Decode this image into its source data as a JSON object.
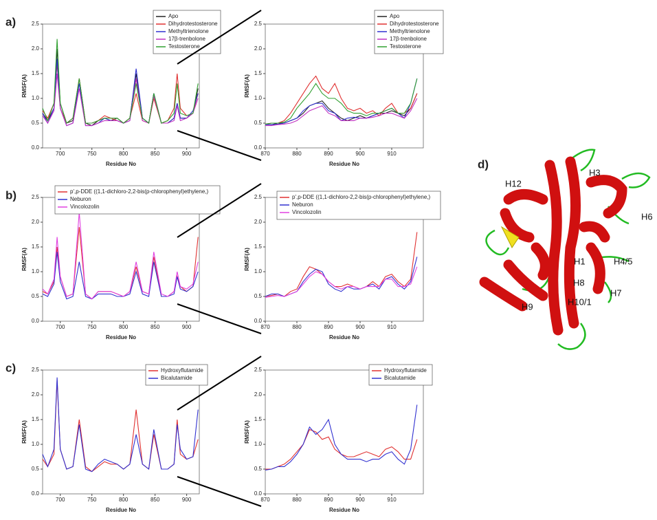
{
  "chart_data": [
    {
      "type": "line",
      "panel_label": "a)",
      "x_label": "Residue No",
      "y_label": "RMSF(A)",
      "xlim": [
        672,
        920
      ],
      "xticks": [
        700,
        750,
        800,
        850,
        900
      ],
      "ylim": [
        0,
        2.5
      ],
      "yticks": [
        {
          "value": 0,
          "label": "0.0"
        },
        0.5,
        {
          "value": 1,
          "label": "1.0"
        },
        1.5,
        {
          "value": 2,
          "label": "2.0"
        },
        2.5
      ],
      "x": [
        672,
        680,
        690,
        695,
        700,
        710,
        720,
        730,
        740,
        750,
        760,
        770,
        780,
        790,
        800,
        810,
        820,
        830,
        840,
        848,
        860,
        870,
        880,
        885,
        890,
        900,
        910,
        918
      ],
      "series": [
        {
          "name": "Apo",
          "color": "#222222",
          "values": [
            0.7,
            0.55,
            0.8,
            2.0,
            0.9,
            0.5,
            0.55,
            1.4,
            0.5,
            0.45,
            0.55,
            0.6,
            0.55,
            0.6,
            0.5,
            0.6,
            1.5,
            0.6,
            0.5,
            1.1,
            0.5,
            0.5,
            0.6,
            0.9,
            0.6,
            0.6,
            0.7,
            1.2
          ]
        },
        {
          "name": "Dihydrotestosterone",
          "color": "#e03030",
          "values": [
            0.75,
            0.6,
            0.9,
            1.7,
            0.8,
            0.5,
            0.6,
            1.4,
            0.5,
            0.5,
            0.55,
            0.65,
            0.6,
            0.55,
            0.5,
            0.6,
            1.1,
            0.55,
            0.5,
            1.0,
            0.5,
            0.55,
            0.8,
            1.5,
            0.8,
            0.65,
            0.7,
            1.1
          ]
        },
        {
          "name": "Methyltrienolone",
          "color": "#3030d0",
          "values": [
            0.7,
            0.5,
            0.8,
            1.8,
            0.8,
            0.45,
            0.5,
            1.3,
            0.45,
            0.45,
            0.5,
            0.6,
            0.55,
            0.55,
            0.5,
            0.55,
            1.6,
            0.6,
            0.5,
            1.1,
            0.5,
            0.5,
            0.6,
            0.9,
            0.6,
            0.6,
            0.75,
            1.1
          ]
        },
        {
          "name": "17β-trenbolone",
          "color": "#c030c0",
          "values": [
            0.65,
            0.5,
            0.75,
            1.5,
            0.8,
            0.45,
            0.5,
            1.2,
            0.45,
            0.45,
            0.5,
            0.55,
            0.55,
            0.55,
            0.5,
            0.55,
            1.4,
            0.55,
            0.5,
            1.05,
            0.5,
            0.5,
            0.55,
            0.85,
            0.55,
            0.6,
            0.7,
            1.0
          ]
        },
        {
          "name": "Testosterone",
          "color": "#30a030",
          "values": [
            0.8,
            0.55,
            0.9,
            2.2,
            0.9,
            0.5,
            0.6,
            1.4,
            0.5,
            0.5,
            0.55,
            0.6,
            0.6,
            0.6,
            0.5,
            0.6,
            1.3,
            0.6,
            0.5,
            1.1,
            0.5,
            0.55,
            0.7,
            1.3,
            0.7,
            0.65,
            0.7,
            1.3
          ]
        }
      ]
    },
    {
      "type": "line",
      "x_label": "Residue No",
      "y_label": "RMSF(A)",
      "xlim": [
        870,
        920
      ],
      "xticks": [
        870,
        880,
        890,
        900,
        910
      ],
      "ylim": [
        0,
        2.5
      ],
      "yticks": [
        {
          "value": 0,
          "label": "0.0"
        },
        0.5,
        {
          "value": 1,
          "label": "1.0"
        },
        1.5,
        {
          "value": 2,
          "label": "2.0"
        },
        2.5
      ],
      "x": [
        870,
        872,
        874,
        876,
        878,
        880,
        882,
        884,
        886,
        888,
        890,
        892,
        894,
        896,
        898,
        900,
        902,
        904,
        906,
        908,
        910,
        912,
        914,
        916,
        918
      ],
      "series": [
        {
          "name": "Apo",
          "color": "#222222",
          "values": [
            0.48,
            0.47,
            0.5,
            0.5,
            0.55,
            0.6,
            0.7,
            0.85,
            0.9,
            0.95,
            0.8,
            0.7,
            0.6,
            0.55,
            0.6,
            0.65,
            0.6,
            0.65,
            0.7,
            0.7,
            0.75,
            0.7,
            0.65,
            0.8,
            1.1
          ]
        },
        {
          "name": "Dihydrotestosterone",
          "color": "#e03030",
          "values": [
            0.48,
            0.5,
            0.5,
            0.55,
            0.7,
            0.9,
            1.1,
            1.3,
            1.45,
            1.2,
            1.1,
            1.3,
            1.0,
            0.8,
            0.75,
            0.8,
            0.7,
            0.75,
            0.65,
            0.8,
            0.9,
            0.7,
            0.7,
            0.8,
            1.1
          ]
        },
        {
          "name": "Methyltrienolone",
          "color": "#3030d0",
          "values": [
            0.47,
            0.47,
            0.48,
            0.5,
            0.55,
            0.6,
            0.75,
            0.85,
            0.9,
            0.9,
            0.75,
            0.7,
            0.55,
            0.6,
            0.62,
            0.6,
            0.6,
            0.65,
            0.7,
            0.75,
            0.8,
            0.7,
            0.6,
            0.9,
            1.4
          ]
        },
        {
          "name": "17β-trenbolone",
          "color": "#c030c0",
          "values": [
            0.45,
            0.45,
            0.47,
            0.48,
            0.5,
            0.55,
            0.65,
            0.75,
            0.8,
            0.85,
            0.7,
            0.65,
            0.55,
            0.55,
            0.55,
            0.6,
            0.6,
            0.62,
            0.65,
            0.7,
            0.7,
            0.65,
            0.6,
            0.75,
            1.0
          ]
        },
        {
          "name": "Testosterone",
          "color": "#30a030",
          "values": [
            0.48,
            0.5,
            0.5,
            0.52,
            0.6,
            0.8,
            0.95,
            1.1,
            1.3,
            1.1,
            1.0,
            1.0,
            0.9,
            0.75,
            0.7,
            0.7,
            0.65,
            0.7,
            0.7,
            0.75,
            0.8,
            0.7,
            0.7,
            0.9,
            1.4
          ]
        }
      ]
    },
    {
      "type": "line",
      "panel_label": "b)",
      "x_label": "Residue No",
      "y_label": "RMSF(A)",
      "xlim": [
        672,
        920
      ],
      "xticks": [
        700,
        750,
        800,
        850,
        900
      ],
      "ylim": [
        0,
        2.5
      ],
      "yticks": [
        {
          "value": 0,
          "label": "0.0"
        },
        0.5,
        {
          "value": 1,
          "label": "1.0"
        },
        1.5,
        {
          "value": 2,
          "label": "2.0"
        },
        2.5
      ],
      "x": [
        672,
        680,
        690,
        695,
        700,
        710,
        720,
        730,
        740,
        750,
        760,
        770,
        780,
        790,
        800,
        810,
        820,
        830,
        840,
        848,
        860,
        870,
        880,
        885,
        890,
        900,
        910,
        918
      ],
      "series": [
        {
          "name": "p',p-DDE ((1,1-dichloro-2,2-bis(p-chlorophenyl)ethylene,)",
          "color": "#e03030",
          "values": [
            0.6,
            0.55,
            0.8,
            1.5,
            0.9,
            0.5,
            0.55,
            1.9,
            0.55,
            0.45,
            0.6,
            0.6,
            0.6,
            0.55,
            0.5,
            0.6,
            1.1,
            0.6,
            0.55,
            1.3,
            0.5,
            0.5,
            0.6,
            0.9,
            0.7,
            0.6,
            0.7,
            1.7
          ]
        },
        {
          "name": "Neburon",
          "color": "#3030d0",
          "values": [
            0.55,
            0.5,
            0.75,
            1.4,
            0.8,
            0.45,
            0.5,
            1.2,
            0.5,
            0.45,
            0.55,
            0.55,
            0.55,
            0.5,
            0.5,
            0.55,
            1.0,
            0.55,
            0.5,
            1.2,
            0.5,
            0.5,
            0.55,
            0.9,
            0.65,
            0.6,
            0.7,
            1.0
          ]
        },
        {
          "name": "Vincolozolin",
          "color": "#e040e0",
          "values": [
            0.65,
            0.55,
            0.85,
            1.7,
            0.9,
            0.5,
            0.55,
            2.2,
            0.55,
            0.45,
            0.6,
            0.6,
            0.6,
            0.55,
            0.5,
            0.6,
            1.2,
            0.6,
            0.55,
            1.4,
            0.55,
            0.5,
            0.6,
            1.0,
            0.7,
            0.65,
            0.75,
            1.2
          ]
        }
      ]
    },
    {
      "type": "line",
      "x_label": "Residue No",
      "y_label": "RMSF(A)",
      "xlim": [
        870,
        920
      ],
      "xticks": [
        870,
        880,
        890,
        900,
        910
      ],
      "ylim": [
        0,
        2.5
      ],
      "yticks": [
        {
          "value": 0,
          "label": "0.0"
        },
        0.5,
        {
          "value": 1,
          "label": "1.0"
        },
        1.5,
        {
          "value": 2,
          "label": "2.0"
        },
        2.5
      ],
      "x": [
        870,
        872,
        874,
        876,
        878,
        880,
        882,
        884,
        886,
        888,
        890,
        892,
        894,
        896,
        898,
        900,
        902,
        904,
        906,
        908,
        910,
        912,
        914,
        916,
        918
      ],
      "series": [
        {
          "name": "p',p-DDE ((1,1-dichloro-2,2-bis(p-chlorophenyl)ethylene,)",
          "color": "#e03030",
          "values": [
            0.5,
            0.52,
            0.55,
            0.5,
            0.6,
            0.65,
            0.9,
            1.1,
            1.05,
            0.95,
            0.8,
            0.7,
            0.7,
            0.75,
            0.7,
            0.65,
            0.7,
            0.8,
            0.7,
            0.9,
            0.95,
            0.8,
            0.7,
            0.85,
            1.8
          ]
        },
        {
          "name": "Neburon",
          "color": "#3030d0",
          "values": [
            0.5,
            0.55,
            0.55,
            0.5,
            0.55,
            0.6,
            0.8,
            0.95,
            1.05,
            1.0,
            0.75,
            0.65,
            0.6,
            0.7,
            0.65,
            0.65,
            0.7,
            0.75,
            0.65,
            0.85,
            0.9,
            0.75,
            0.65,
            0.8,
            1.3
          ]
        },
        {
          "name": "Vincolozolin",
          "color": "#e040e0",
          "values": [
            0.48,
            0.5,
            0.52,
            0.5,
            0.55,
            0.6,
            0.75,
            0.9,
            1.0,
            0.95,
            0.8,
            0.7,
            0.65,
            0.7,
            0.7,
            0.65,
            0.7,
            0.7,
            0.7,
            0.85,
            0.85,
            0.7,
            0.7,
            0.75,
            1.1
          ]
        }
      ]
    },
    {
      "type": "line",
      "panel_label": "c)",
      "x_label": "Residue No",
      "y_label": "RMSF(A)",
      "xlim": [
        672,
        920
      ],
      "xticks": [
        700,
        750,
        800,
        850,
        900
      ],
      "ylim": [
        0,
        2.5
      ],
      "yticks": [
        {
          "value": 0,
          "label": "0.0"
        },
        0.5,
        {
          "value": 1,
          "label": "1.0"
        },
        1.5,
        {
          "value": 2,
          "label": "2.0"
        },
        2.5
      ],
      "x": [
        672,
        680,
        690,
        695,
        700,
        710,
        720,
        730,
        740,
        750,
        760,
        770,
        780,
        790,
        800,
        810,
        820,
        830,
        840,
        848,
        860,
        870,
        880,
        885,
        890,
        900,
        910,
        918
      ],
      "series": [
        {
          "name": "Hydroxyflutamide",
          "color": "#e03030",
          "values": [
            0.7,
            0.55,
            0.8,
            2.3,
            0.9,
            0.5,
            0.55,
            1.5,
            0.55,
            0.45,
            0.55,
            0.65,
            0.6,
            0.6,
            0.5,
            0.6,
            1.7,
            0.6,
            0.5,
            1.2,
            0.5,
            0.5,
            0.6,
            1.5,
            0.8,
            0.7,
            0.75,
            1.1
          ]
        },
        {
          "name": "Bicalutamide",
          "color": "#3030d0",
          "values": [
            0.8,
            0.55,
            0.9,
            2.35,
            0.9,
            0.5,
            0.55,
            1.4,
            0.5,
            0.45,
            0.6,
            0.7,
            0.65,
            0.6,
            0.5,
            0.6,
            1.2,
            0.6,
            0.5,
            1.3,
            0.5,
            0.5,
            0.6,
            1.4,
            0.9,
            0.7,
            0.75,
            1.7
          ]
        }
      ]
    },
    {
      "type": "line",
      "x_label": "Residue No",
      "y_label": "RMSF(A)",
      "xlim": [
        870,
        920
      ],
      "xticks": [
        870,
        880,
        890,
        900,
        910
      ],
      "ylim": [
        0,
        2.5
      ],
      "yticks": [
        {
          "value": 0,
          "label": "0.0"
        },
        0.5,
        {
          "value": 1,
          "label": "1.0"
        },
        1.5,
        {
          "value": 2,
          "label": "2.0"
        },
        2.5
      ],
      "x": [
        870,
        872,
        874,
        876,
        878,
        880,
        882,
        884,
        886,
        888,
        890,
        892,
        894,
        896,
        898,
        900,
        902,
        904,
        906,
        908,
        910,
        912,
        914,
        916,
        918
      ],
      "series": [
        {
          "name": "Hydroxyflutamide",
          "color": "#e03030",
          "values": [
            0.5,
            0.5,
            0.55,
            0.6,
            0.7,
            0.85,
            1.0,
            1.3,
            1.25,
            1.1,
            1.15,
            0.9,
            0.8,
            0.75,
            0.75,
            0.8,
            0.85,
            0.8,
            0.75,
            0.9,
            0.95,
            0.85,
            0.7,
            0.7,
            1.1
          ]
        },
        {
          "name": "Bicalutamide",
          "color": "#3030d0",
          "values": [
            0.48,
            0.5,
            0.55,
            0.55,
            0.65,
            0.8,
            1.0,
            1.35,
            1.2,
            1.3,
            1.5,
            1.0,
            0.8,
            0.7,
            0.7,
            0.7,
            0.65,
            0.7,
            0.7,
            0.8,
            0.85,
            0.7,
            0.6,
            0.9,
            1.8
          ]
        }
      ]
    }
  ],
  "structure": {
    "panel_label": "d)",
    "labels": [
      "H12",
      "H3",
      "H6",
      "H1",
      "H4/5",
      "H8",
      "H7",
      "H10/1",
      "H9"
    ]
  }
}
